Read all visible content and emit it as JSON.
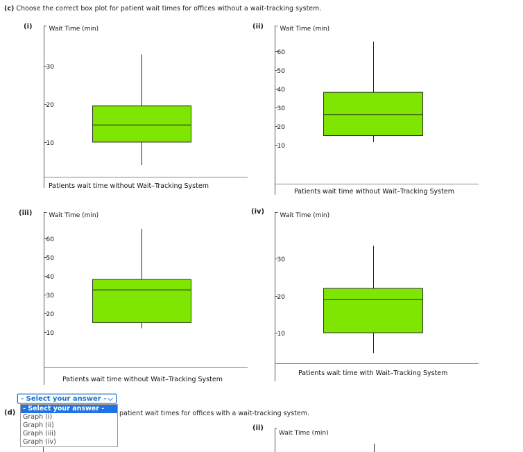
{
  "question_c": {
    "label": "(c)",
    "text": "Choose the correct box plot for patient wait times for offices without a wait-tracking system."
  },
  "question_d": {
    "label": "(d)",
    "text_visible": "patient wait times for offices with a wait-tracking system."
  },
  "colors": {
    "box_fill": "#7ee600",
    "box_stroke": "#333333",
    "axis": "#555555"
  },
  "graphs": [
    {
      "roman": "(i)",
      "ylabel": "Wait Time (min)",
      "xlabel": "Patients  wait  time  without  Wait–Tracking  System",
      "ticks": [
        10,
        20,
        30
      ],
      "ylim": [
        4,
        34
      ],
      "box": {
        "min": 4,
        "q1": 10,
        "median": 14.5,
        "q3": 19.5,
        "max": 33
      }
    },
    {
      "roman": "(ii)",
      "ylabel": "Wait Time (min)",
      "xlabel": "Patients  wait  time  without  Wait–Tracking  System",
      "ticks": [
        10,
        20,
        30,
        40,
        50,
        60
      ],
      "ylim": [
        3,
        65
      ],
      "box": {
        "min": 11.5,
        "q1": 15,
        "median": 26,
        "q3": 38,
        "max": 65
      }
    },
    {
      "roman": "(iii)",
      "ylabel": "Wait Time (min)",
      "xlabel": "Patients  wait  time  without  Wait–Tracking  System",
      "ticks": [
        10,
        20,
        30,
        40,
        50,
        60
      ],
      "ylim": [
        3,
        65
      ],
      "box": {
        "min": 12,
        "q1": 15,
        "median": 32.5,
        "q3": 38,
        "max": 65
      }
    },
    {
      "roman": "(iv)",
      "ylabel": "Wait Time (min)",
      "xlabel": "Patients  wait  time  with  Wait–Tracking  System",
      "ticks": [
        10,
        20,
        30
      ],
      "ylim": [
        4,
        34
      ],
      "box": {
        "min": 4.5,
        "q1": 10,
        "median": 19,
        "q3": 22,
        "max": 33.5
      }
    }
  ],
  "dropdown": {
    "selected": "- Select your answer -",
    "options": [
      "- Select your answer -",
      "Graph (i)",
      "Graph (ii)",
      "Graph (iii)",
      "Graph (iv)"
    ]
  },
  "partial_graph": {
    "roman": "(ii)",
    "ylabel": "Wait Time (min)"
  }
}
